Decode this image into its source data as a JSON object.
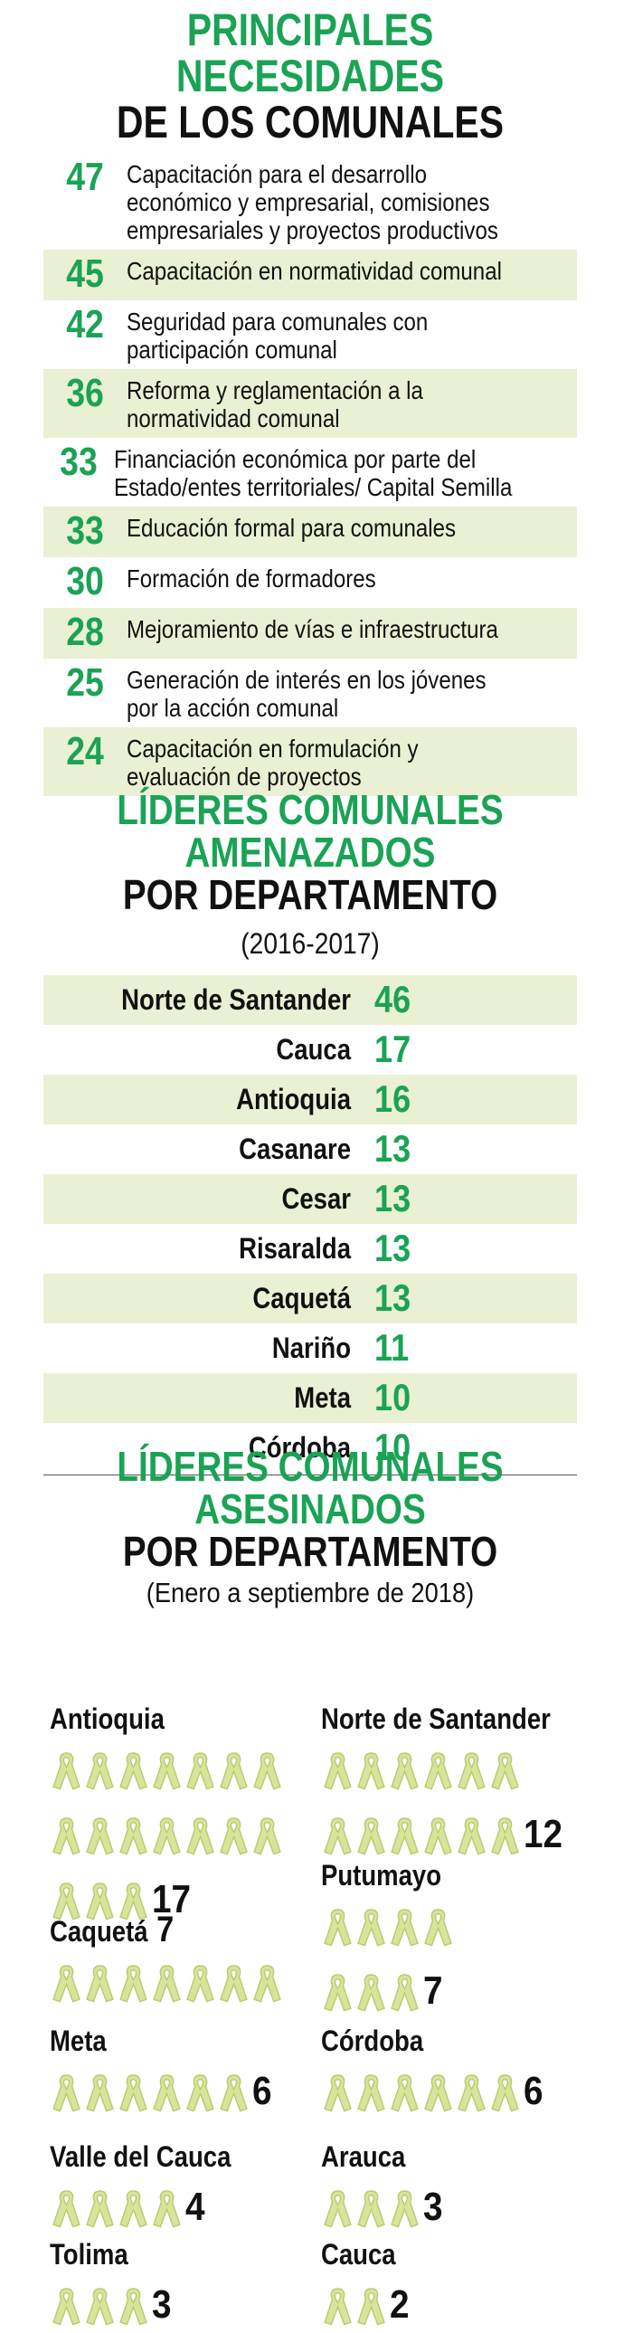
{
  "needs": {
    "title_line1": "PRINCIPALES NECESIDADES",
    "title_line2": "DE LOS COMUNALES",
    "items": [
      {
        "value": "47",
        "lines": [
          "Capacitación para el desarrollo",
          "económico y empresarial, comisiones",
          "empresariales y proyectos productivos"
        ]
      },
      {
        "value": "45",
        "lines": [
          "Capacitación en normatividad comunal"
        ]
      },
      {
        "value": "42",
        "lines": [
          "Seguridad para comunales con",
          "participación comunal"
        ]
      },
      {
        "value": "36",
        "lines": [
          "Reforma y reglamentación a la",
          "normatividad comunal"
        ]
      },
      {
        "value": "33",
        "lines": [
          "Financiación económica por parte del",
          "Estado/entes territoriales/ Capital Semilla"
        ]
      },
      {
        "value": "33",
        "lines": [
          "Educación formal para comunales"
        ]
      },
      {
        "value": "30",
        "lines": [
          "Formación de formadores"
        ]
      },
      {
        "value": "28",
        "lines": [
          "Mejoramiento de vías e infraestructura"
        ]
      },
      {
        "value": "25",
        "lines": [
          "Generación de interés en los jóvenes",
          "por la acción comunal"
        ]
      },
      {
        "value": "24",
        "lines": [
          "Capacitación en formulación y",
          "evaluación de proyectos"
        ]
      }
    ]
  },
  "threatened": {
    "title_line1": "LÍDERES COMUNALES",
    "title_line2": "AMENAZADOS",
    "title_line3": "POR DEPARTAMENTO",
    "subtitle": "(2016-2017)",
    "items": [
      {
        "name": "Norte de Santander",
        "value": "46"
      },
      {
        "name": "Cauca",
        "value": "17"
      },
      {
        "name": "Antioquia",
        "value": "16"
      },
      {
        "name": "Casanare",
        "value": "13"
      },
      {
        "name": "Cesar",
        "value": "13"
      },
      {
        "name": "Risaralda",
        "value": "13"
      },
      {
        "name": "Caquetá",
        "value": "13"
      },
      {
        "name": "Nariño",
        "value": "11"
      },
      {
        "name": "Meta",
        "value": "10"
      },
      {
        "name": "Córdoba",
        "value": "10"
      }
    ]
  },
  "killed": {
    "title_line1": "LÍDERES COMUNALES",
    "title_line2": "ASESINADOS",
    "title_line3": "POR DEPARTAMENTO",
    "subtitle": "(Enero a septiembre de 2018)",
    "ribbon_icon": "ribbon-icon"
  },
  "chart_data": [
    {
      "type": "table",
      "title": "PRINCIPALES NECESIDADES DE LOS COMUNALES",
      "categories": [
        "Capacitación para el desarrollo económico y empresarial, comisiones empresariales y proyectos productivos",
        "Capacitación en normatividad comunal",
        "Seguridad para comunales con participación comunal",
        "Reforma y reglamentación a la normatividad comunal",
        "Financiación económica por parte del Estado/entes territoriales/ Capital Semilla",
        "Educación formal para comunales",
        "Formación de formadores",
        "Mejoramiento de vías e infraestructura",
        "Generación de interés en los jóvenes por la acción comunal",
        "Capacitación en formulación y evaluación de proyectos"
      ],
      "values": [
        47,
        45,
        42,
        36,
        33,
        33,
        30,
        28,
        25,
        24
      ]
    },
    {
      "type": "table",
      "title": "LÍDERES COMUNALES AMENAZADOS POR DEPARTAMENTO",
      "subtitle": "(2016-2017)",
      "categories": [
        "Norte de Santander",
        "Cauca",
        "Antioquia",
        "Casanare",
        "Cesar",
        "Risaralda",
        "Caquetá",
        "Nariño",
        "Meta",
        "Córdoba"
      ],
      "values": [
        46,
        17,
        16,
        13,
        13,
        13,
        13,
        11,
        10,
        10
      ]
    },
    {
      "type": "bar",
      "title": "LÍDERES COMUNALES ASESINADOS POR DEPARTAMENTO",
      "subtitle": "(Enero a septiembre de 2018)",
      "categories": [
        "Antioquia",
        "Norte de Santander",
        "Putumayo",
        "Caquetá",
        "Meta",
        "Córdoba",
        "Valle del Cauca",
        "Arauca",
        "Tolima",
        "Cauca"
      ],
      "values": [
        17,
        12,
        7,
        7,
        6,
        6,
        4,
        3,
        3,
        2
      ],
      "colors": {
        "ribbon": "#d6e59a",
        "ribbon_stroke": "#b7cc6f",
        "accent": "#1aa355"
      }
    }
  ]
}
